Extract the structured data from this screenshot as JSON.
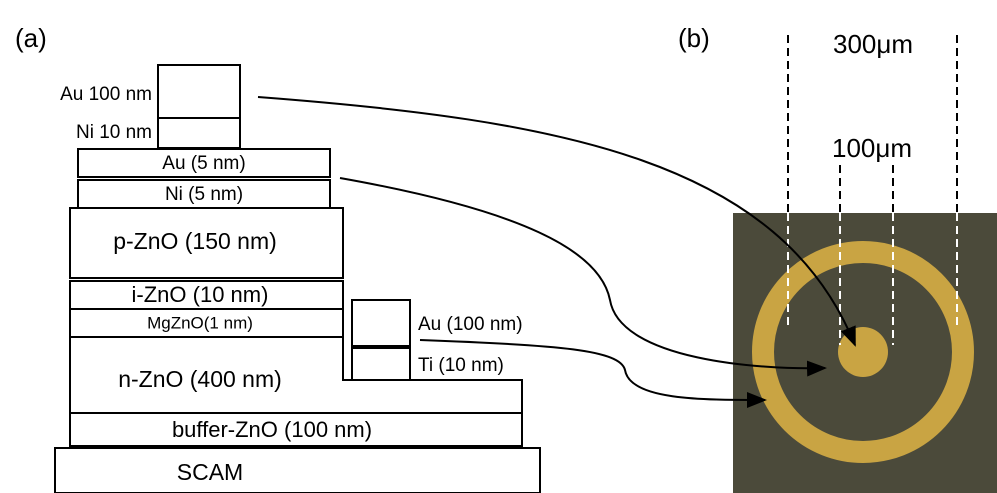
{
  "panel_a": {
    "label": "(a)",
    "top_contact": [
      {
        "label": "Au 100 nm"
      },
      {
        "label": "Ni 10 nm"
      }
    ],
    "layers": [
      "Au (5 nm)",
      "Ni (5 nm)",
      "p-ZnO (150 nm)",
      "i-ZnO (10 nm)",
      "MgZnO(1 nm)",
      "n-ZnO (400 nm)",
      "buffer-ZnO (100 nm)",
      "SCAM"
    ],
    "side_contact": [
      {
        "label": "Au (100 nm)"
      },
      {
        "label": "Ti (10 nm)"
      }
    ]
  },
  "panel_b": {
    "label": "(b)",
    "outer_dimension": "300μm",
    "inner_dimension": "100μm"
  }
}
